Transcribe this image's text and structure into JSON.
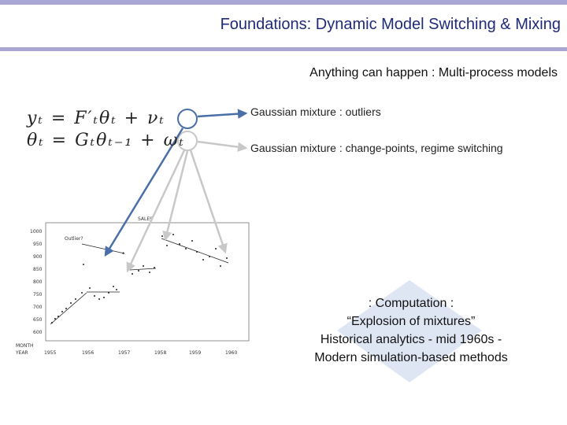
{
  "slide": {
    "title": "Foundations: Dynamic Model Switching & Mixing",
    "subtitle": "Anything can happen : Multi-process models"
  },
  "equations": {
    "line1": "yₜ = F′ₜθₜ + νₜ",
    "line2": "θₜ = Gₜθₜ₋₁ + ωₜ"
  },
  "annotations": {
    "outliers": "Gaussian mixture :  outliers",
    "changepoints": "Gaussian mixture : change-points, regime switching"
  },
  "computation": {
    "line1": ": Computation :",
    "line2": "“Explosion of mixtures”",
    "line3": "Historical analytics - mid 1960s -",
    "line4": "Modern simulation-based methods"
  },
  "chart": {
    "title": "SALES",
    "outlier_label": "Outlier?",
    "x_axis_label_1": "MONTH",
    "x_axis_label_2": "YEAR",
    "y_ticks": [
      "1000",
      "950",
      "900",
      "850",
      "800",
      "750",
      "700",
      "650",
      "600"
    ],
    "x_ticks": [
      "1955",
      "1956",
      "1957",
      "1958",
      "1959",
      "1960"
    ]
  },
  "colors": {
    "title": "#1f2a78",
    "accent_bar": "#a9a6d6",
    "blue_arrow": "#4a6fa8",
    "gray_arrow": "#c8c8c8",
    "diamond": "#dfe6f3"
  }
}
